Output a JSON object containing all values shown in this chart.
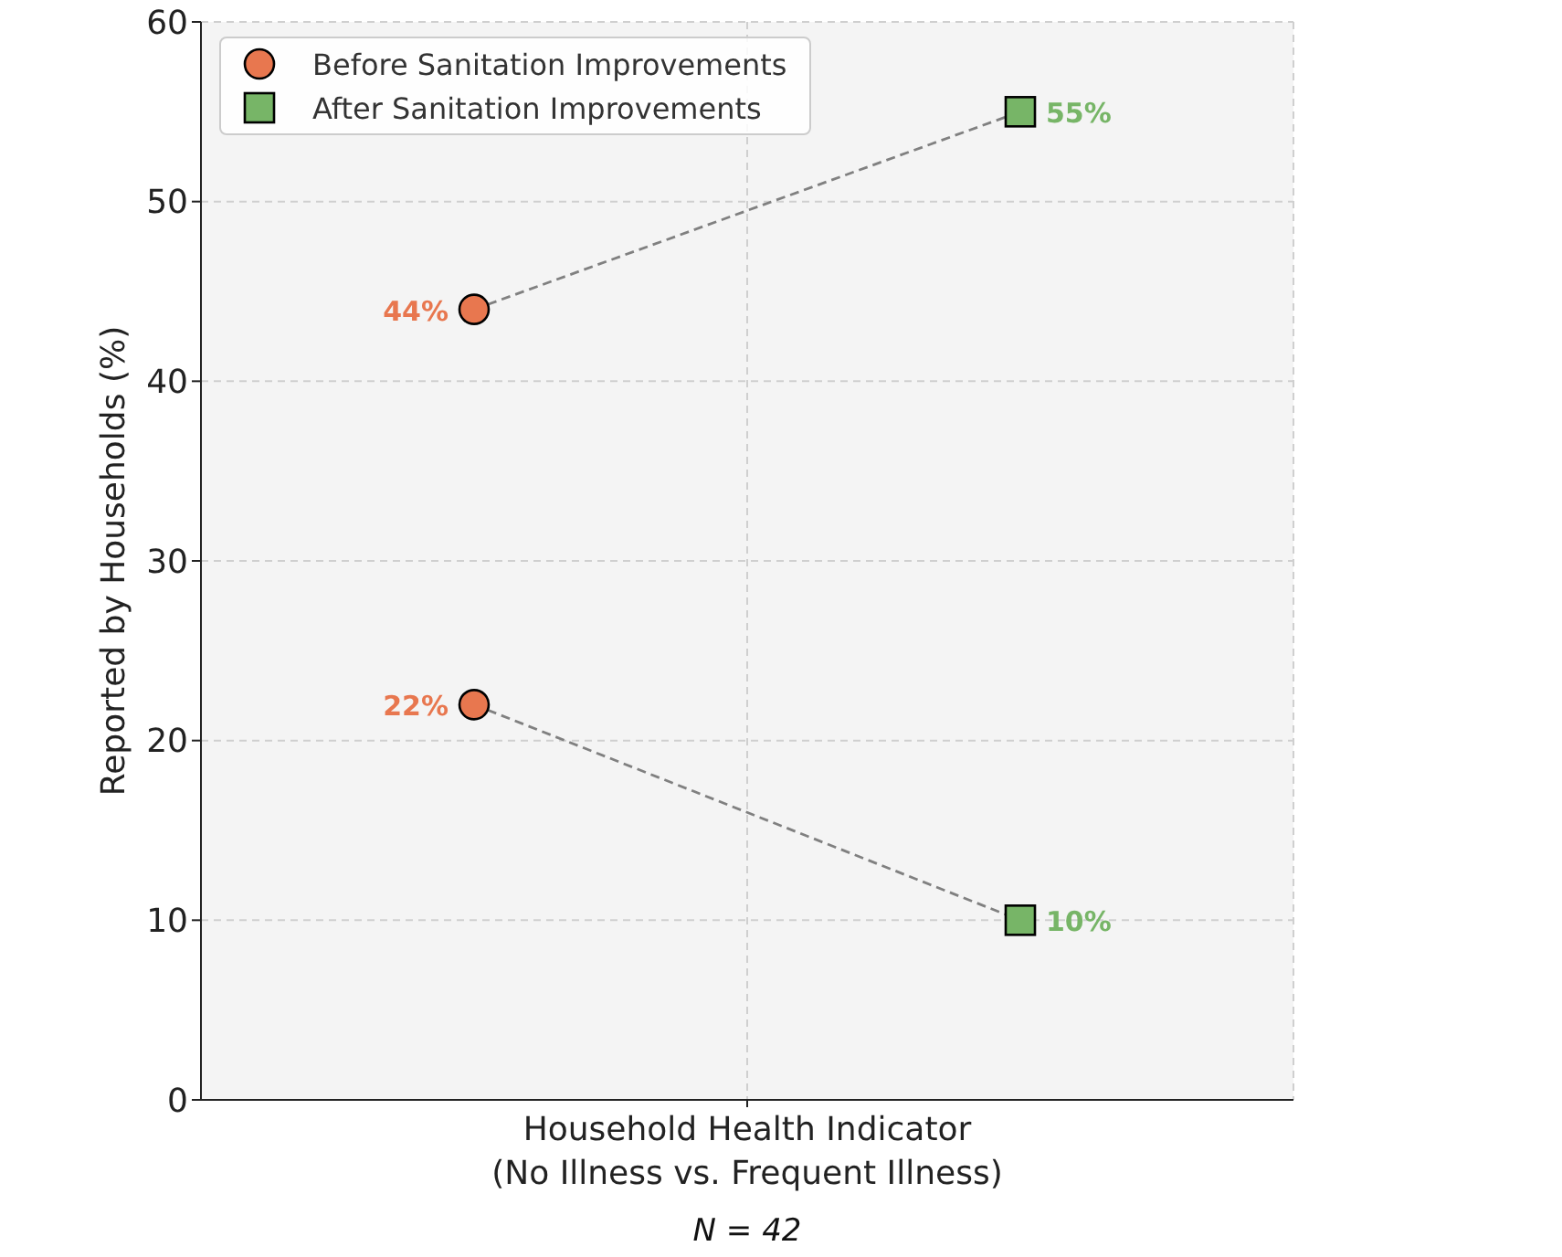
{
  "chart_data": {
    "type": "scatter",
    "xlabel": "Household Health Indicator\n(No Illness vs. Frequent Illness)",
    "ylabel": "Reported by Households (%)",
    "annotations": [
      "N = 42"
    ],
    "categories": [
      null,
      null
    ],
    "ylim": [
      0,
      60
    ],
    "yticks": [
      0,
      10,
      20,
      30,
      40,
      50,
      60
    ],
    "tick_labels": "y",
    "grid": true,
    "legend": "top left",
    "series": [
      {
        "type": "line",
        "color": "#808080",
        "values": [
          44,
          55
        ],
        "line_style": "dashed",
        "marker": "none"
      },
      {
        "type": "line",
        "color": "#808080",
        "values": [
          22,
          10
        ],
        "line_style": "dashed",
        "marker": "none"
      },
      {
        "name": "Before Sanitation Improvements",
        "color": "#e8774f",
        "marker": "circle",
        "values": [
          44,
          null
        ],
        "value_labels": [
          "44%",
          null
        ]
      },
      {
        "color": "#e8774f",
        "marker": "circle",
        "values": [
          22,
          null
        ],
        "value_labels": [
          "22%",
          null
        ]
      },
      {
        "name": "After Sanitation Improvements",
        "color": "#77b567",
        "marker": "square",
        "values": [
          null,
          55
        ],
        "value_labels": [
          null,
          "55%"
        ]
      },
      {
        "color": "#77b567",
        "marker": "square",
        "values": [
          null,
          10
        ],
        "value_labels": [
          null,
          "10%"
        ]
      }
    ]
  }
}
